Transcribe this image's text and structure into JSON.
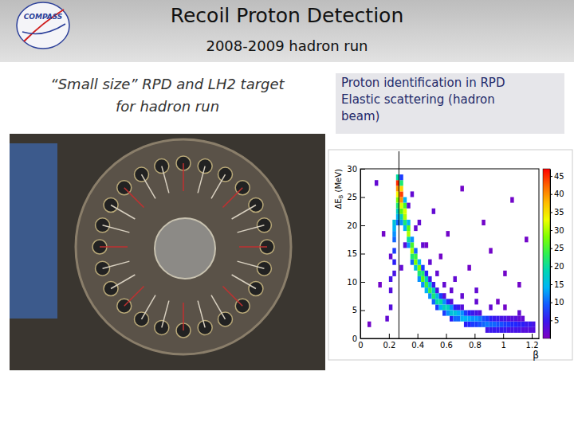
{
  "header": {
    "title": "Recoil Proton Detection",
    "subtitle": "2008-2009 hadron run",
    "logo": "COMPASS"
  },
  "left_caption": [
    "“Small size” RPD and LH2 target",
    "for  hadron run"
  ],
  "right_box": [
    "Proton identification in RPD",
    "Elastic scattering (hadron",
    "beam)"
  ],
  "chart_data": {
    "type": "heatmap",
    "xlabel": "β",
    "ylabel": "ΔEB (MeV)",
    "xlim": [
      0,
      1.25
    ],
    "xticks": [
      0,
      0.2,
      0.4,
      0.6,
      0.8,
      1,
      1.2
    ],
    "ylim": [
      0,
      30
    ],
    "yticks": [
      0,
      5,
      10,
      15,
      20,
      25,
      30
    ],
    "grid": false,
    "vline": 0.27,
    "cell_size": [
      0.025,
      1
    ],
    "colorbar_range": [
      0,
      47
    ],
    "colorbar_ticks": [
      5,
      10,
      15,
      20,
      25,
      30,
      35,
      40,
      45
    ],
    "cells": [
      [
        0.2,
        5,
        3
      ],
      [
        0.2,
        8,
        3
      ],
      [
        0.2,
        10,
        4
      ],
      [
        0.225,
        11,
        4
      ],
      [
        0.225,
        13,
        6
      ],
      [
        0.225,
        15,
        8
      ],
      [
        0.225,
        17,
        10
      ],
      [
        0.225,
        18,
        12
      ],
      [
        0.225,
        19,
        14
      ],
      [
        0.225,
        20,
        16
      ],
      [
        0.25,
        20,
        10
      ],
      [
        0.25,
        21,
        14
      ],
      [
        0.25,
        22,
        18
      ],
      [
        0.25,
        23,
        22
      ],
      [
        0.25,
        24,
        28
      ],
      [
        0.25,
        25,
        34
      ],
      [
        0.25,
        26,
        40
      ],
      [
        0.25,
        27,
        45
      ],
      [
        0.25,
        28,
        20
      ],
      [
        0.275,
        20,
        12
      ],
      [
        0.275,
        21,
        18
      ],
      [
        0.275,
        22,
        26
      ],
      [
        0.275,
        23,
        32
      ],
      [
        0.275,
        24,
        40
      ],
      [
        0.275,
        25,
        44
      ],
      [
        0.275,
        26,
        36
      ],
      [
        0.275,
        27,
        22
      ],
      [
        0.275,
        28,
        8
      ],
      [
        0.3,
        19,
        14
      ],
      [
        0.3,
        20,
        22
      ],
      [
        0.3,
        21,
        30
      ],
      [
        0.3,
        22,
        32
      ],
      [
        0.3,
        23,
        25
      ],
      [
        0.3,
        24,
        14
      ],
      [
        0.325,
        16,
        12
      ],
      [
        0.325,
        17,
        20
      ],
      [
        0.325,
        18,
        30
      ],
      [
        0.325,
        19,
        26
      ],
      [
        0.325,
        20,
        14
      ],
      [
        0.35,
        13,
        10
      ],
      [
        0.35,
        14,
        22
      ],
      [
        0.35,
        15,
        30
      ],
      [
        0.35,
        16,
        25
      ],
      [
        0.35,
        17,
        12
      ],
      [
        0.375,
        12,
        16
      ],
      [
        0.375,
        13,
        28
      ],
      [
        0.375,
        14,
        24
      ],
      [
        0.375,
        15,
        10
      ],
      [
        0.4,
        10,
        12
      ],
      [
        0.4,
        11,
        22
      ],
      [
        0.4,
        12,
        28
      ],
      [
        0.4,
        13,
        14
      ],
      [
        0.425,
        9,
        12
      ],
      [
        0.425,
        10,
        26
      ],
      [
        0.425,
        11,
        22
      ],
      [
        0.425,
        12,
        8
      ],
      [
        0.45,
        8,
        14
      ],
      [
        0.45,
        9,
        24
      ],
      [
        0.45,
        10,
        18
      ],
      [
        0.45,
        11,
        6
      ],
      [
        0.475,
        7,
        12
      ],
      [
        0.475,
        8,
        24
      ],
      [
        0.475,
        9,
        16
      ],
      [
        0.475,
        10,
        5
      ],
      [
        0.5,
        6,
        10
      ],
      [
        0.5,
        7,
        22
      ],
      [
        0.5,
        8,
        18
      ],
      [
        0.5,
        9,
        5
      ],
      [
        0.525,
        5,
        8
      ],
      [
        0.525,
        6,
        20
      ],
      [
        0.525,
        7,
        16
      ],
      [
        0.525,
        8,
        4
      ],
      [
        0.55,
        5,
        14
      ],
      [
        0.55,
        6,
        20
      ],
      [
        0.55,
        7,
        8
      ],
      [
        0.575,
        4,
        8
      ],
      [
        0.575,
        5,
        18
      ],
      [
        0.575,
        6,
        12
      ],
      [
        0.575,
        7,
        3
      ],
      [
        0.6,
        4,
        12
      ],
      [
        0.6,
        5,
        18
      ],
      [
        0.6,
        6,
        7
      ],
      [
        0.625,
        3,
        6
      ],
      [
        0.625,
        4,
        16
      ],
      [
        0.625,
        5,
        12
      ],
      [
        0.625,
        6,
        3
      ],
      [
        0.65,
        3,
        10
      ],
      [
        0.65,
        4,
        16
      ],
      [
        0.65,
        5,
        6
      ],
      [
        0.675,
        3,
        10
      ],
      [
        0.675,
        4,
        14
      ],
      [
        0.675,
        5,
        5
      ],
      [
        0.7,
        3,
        14
      ],
      [
        0.7,
        4,
        12
      ],
      [
        0.7,
        5,
        3
      ],
      [
        0.725,
        2,
        6
      ],
      [
        0.725,
        3,
        14
      ],
      [
        0.725,
        4,
        8
      ],
      [
        0.75,
        2,
        7
      ],
      [
        0.75,
        3,
        13
      ],
      [
        0.75,
        4,
        6
      ],
      [
        0.775,
        2,
        8
      ],
      [
        0.775,
        3,
        12
      ],
      [
        0.775,
        4,
        5
      ],
      [
        0.8,
        2,
        8
      ],
      [
        0.8,
        3,
        12
      ],
      [
        0.8,
        4,
        4
      ],
      [
        0.825,
        2,
        9
      ],
      [
        0.825,
        3,
        11
      ],
      [
        0.825,
        4,
        3
      ],
      [
        0.85,
        2,
        10
      ],
      [
        0.85,
        3,
        9
      ],
      [
        0.875,
        1,
        4
      ],
      [
        0.875,
        2,
        11
      ],
      [
        0.875,
        3,
        8
      ],
      [
        0.9,
        1,
        5
      ],
      [
        0.9,
        2,
        10
      ],
      [
        0.9,
        3,
        6
      ],
      [
        0.925,
        1,
        5
      ],
      [
        0.925,
        2,
        10
      ],
      [
        0.925,
        3,
        5
      ],
      [
        0.95,
        1,
        5
      ],
      [
        0.95,
        2,
        9
      ],
      [
        0.95,
        3,
        5
      ],
      [
        0.975,
        1,
        5
      ],
      [
        0.975,
        2,
        9
      ],
      [
        0.975,
        3,
        4
      ],
      [
        1,
        1,
        5
      ],
      [
        1,
        2,
        8
      ],
      [
        1,
        3,
        4
      ],
      [
        1.025,
        1,
        4
      ],
      [
        1.025,
        2,
        8
      ],
      [
        1.025,
        3,
        3
      ],
      [
        1.05,
        1,
        4
      ],
      [
        1.05,
        2,
        7
      ],
      [
        1.05,
        3,
        3
      ],
      [
        1.075,
        1,
        4
      ],
      [
        1.075,
        2,
        7
      ],
      [
        1.075,
        3,
        3
      ],
      [
        1.1,
        1,
        4
      ],
      [
        1.1,
        2,
        6
      ],
      [
        1.1,
        3,
        2
      ],
      [
        1.125,
        1,
        3
      ],
      [
        1.125,
        2,
        6
      ],
      [
        1.125,
        3,
        2
      ],
      [
        1.15,
        1,
        3
      ],
      [
        1.15,
        2,
        5
      ],
      [
        1.175,
        1,
        3
      ],
      [
        1.175,
        2,
        5
      ],
      [
        1.2,
        1,
        3
      ],
      [
        1.2,
        2,
        4
      ],
      [
        0.1,
        27,
        2
      ],
      [
        0.15,
        18,
        1
      ],
      [
        0.35,
        25,
        2
      ],
      [
        0.4,
        20,
        2
      ],
      [
        0.45,
        16,
        1
      ],
      [
        0.5,
        22,
        2
      ],
      [
        0.55,
        14,
        1
      ],
      [
        0.6,
        18,
        1
      ],
      [
        0.65,
        10,
        2
      ],
      [
        0.7,
        26,
        1
      ],
      [
        0.75,
        12,
        1
      ],
      [
        0.8,
        8,
        2
      ],
      [
        0.85,
        20,
        1
      ],
      [
        0.9,
        15,
        1
      ],
      [
        0.95,
        6,
        1
      ],
      [
        1,
        11,
        1
      ],
      [
        1.05,
        24,
        1
      ],
      [
        1.1,
        9,
        1
      ],
      [
        1.15,
        17,
        1
      ],
      [
        0.275,
        12,
        2
      ],
      [
        0.3,
        16,
        3
      ],
      [
        0.325,
        23,
        2
      ],
      [
        0.375,
        19,
        2
      ],
      [
        0.425,
        16,
        2
      ],
      [
        0.475,
        13,
        2
      ],
      [
        0.525,
        11,
        2
      ],
      [
        0.575,
        9,
        2
      ],
      [
        0.625,
        8,
        2
      ],
      [
        0.7,
        7,
        2
      ],
      [
        0.8,
        6,
        2
      ],
      [
        0.9,
        5,
        2
      ],
      [
        1,
        5,
        1
      ],
      [
        1.1,
        4,
        2
      ],
      [
        0.05,
        2,
        1
      ],
      [
        0.125,
        9,
        1
      ],
      [
        0.175,
        3,
        2
      ],
      [
        0.2,
        14,
        2
      ]
    ]
  }
}
